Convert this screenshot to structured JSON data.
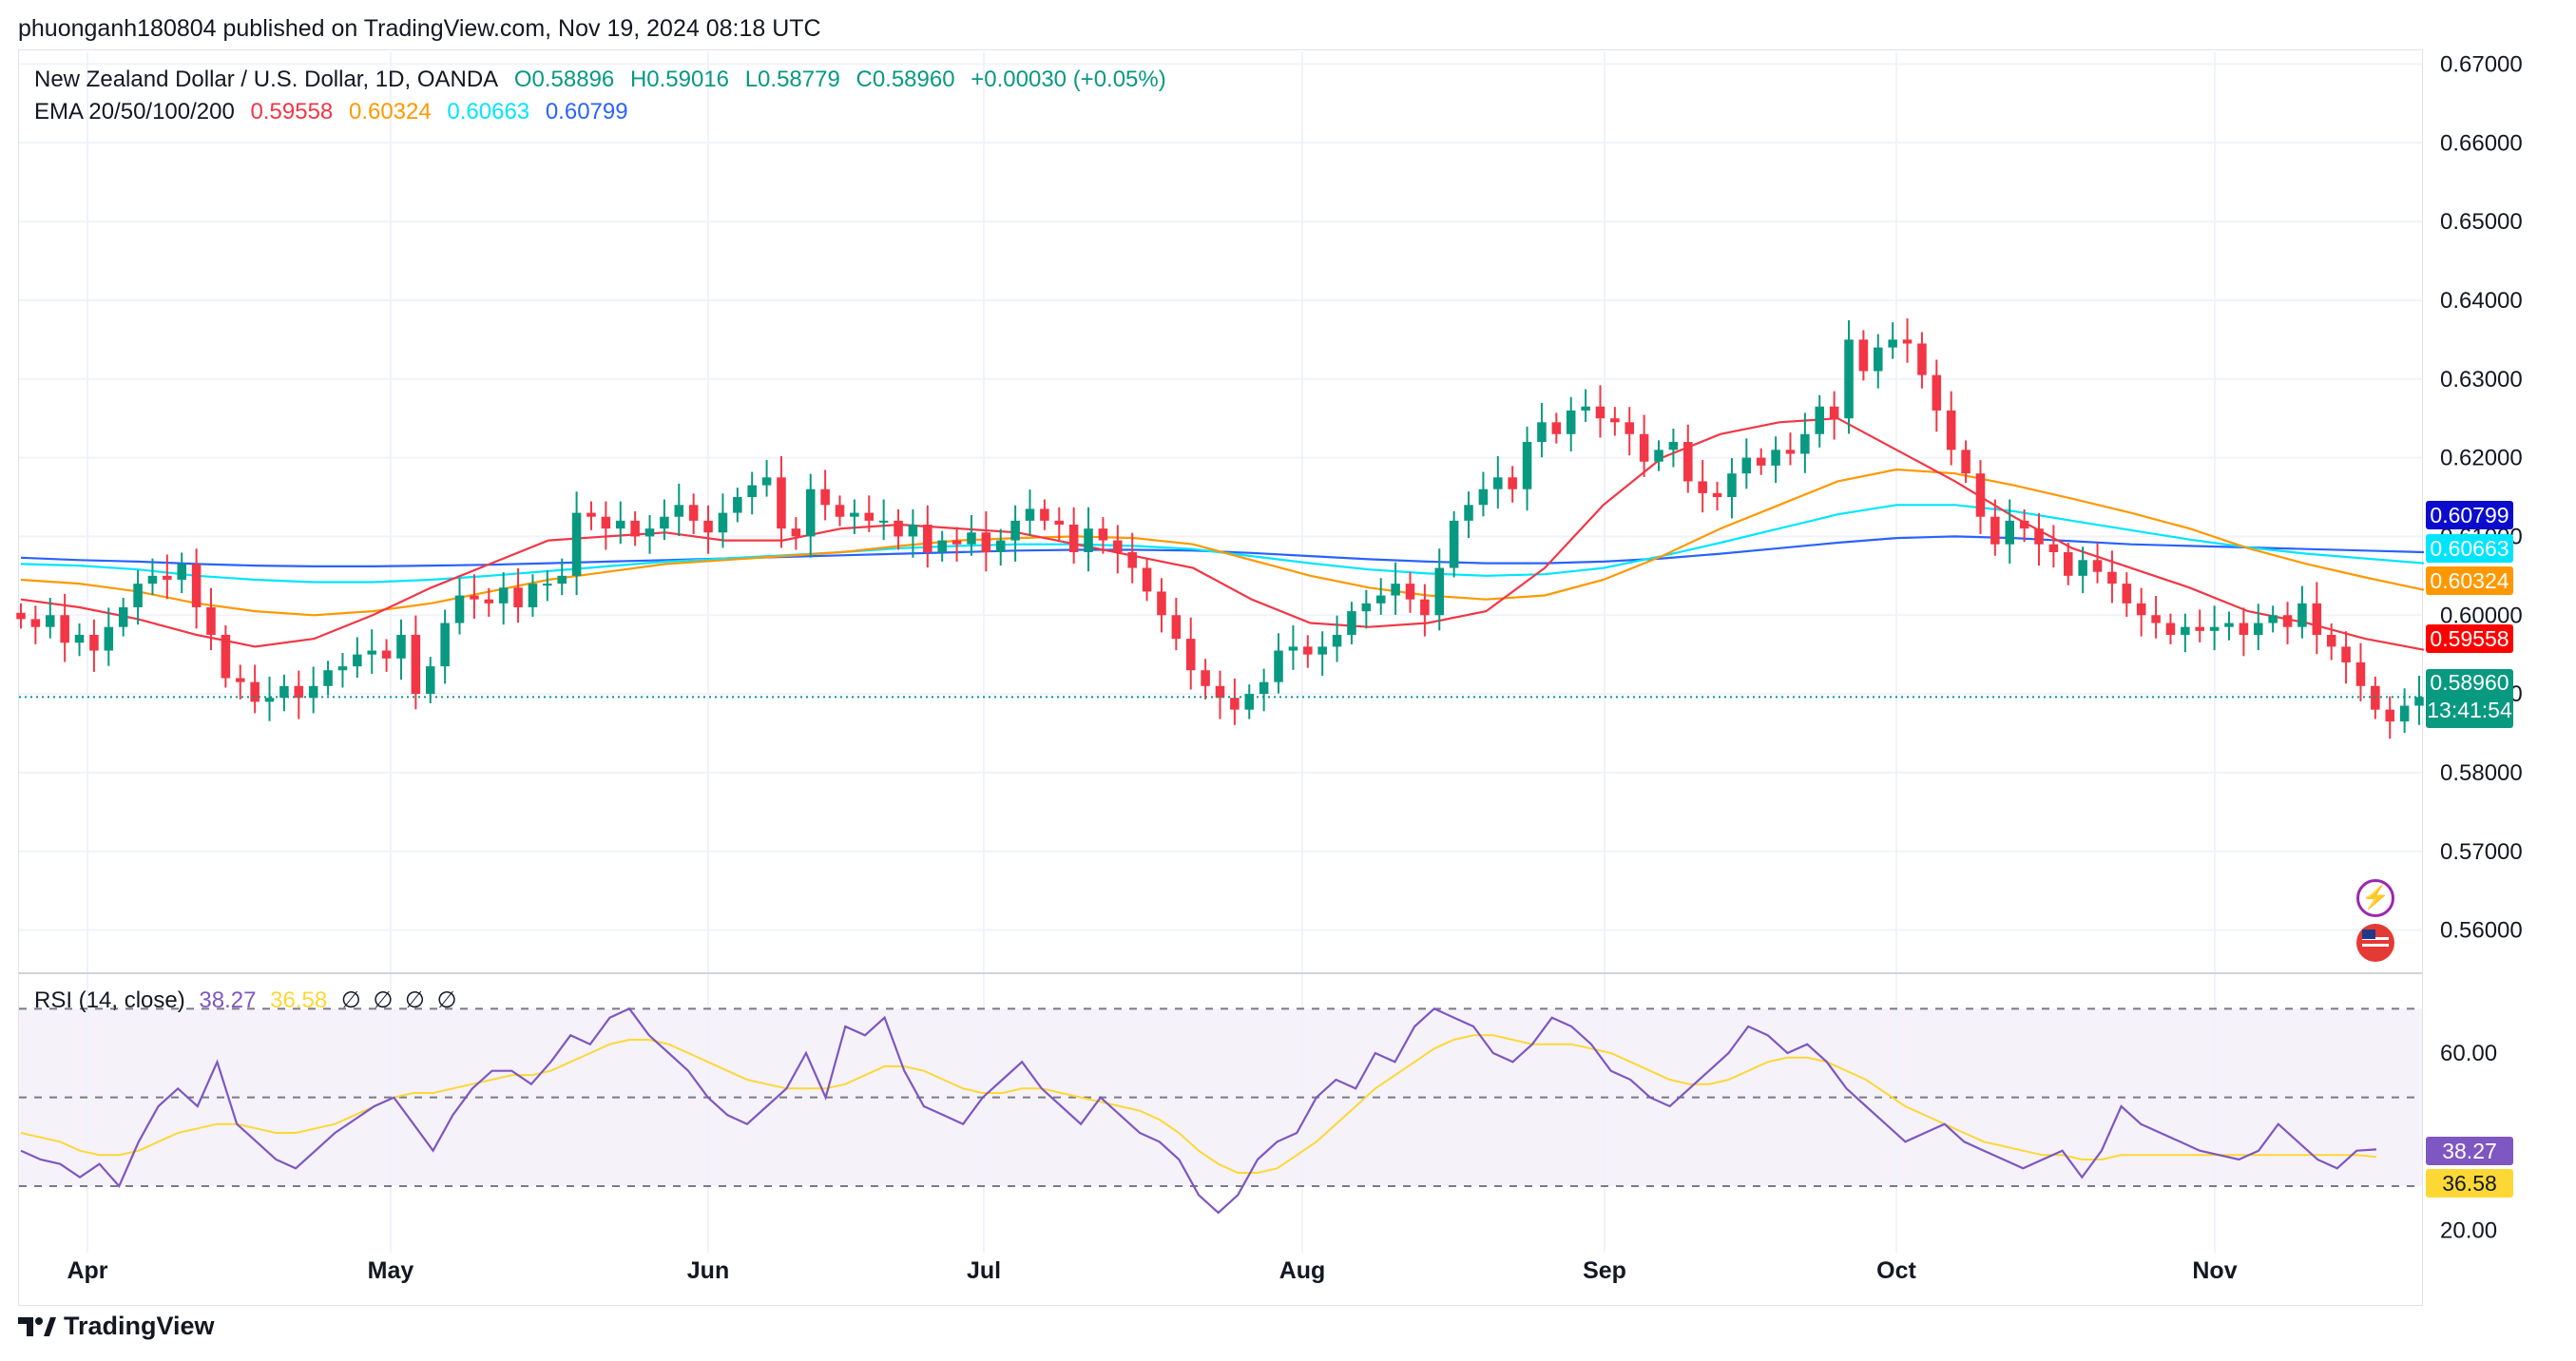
{
  "header": {
    "published_by": "phuonganh180804 published on TradingView.com, Nov 19, 2024 08:18 UTC"
  },
  "legend": {
    "symbol": "New Zealand Dollar / U.S. Dollar, 1D, OANDA",
    "open": "O0.58896",
    "high": "H0.59016",
    "low": "L0.58779",
    "close": "C0.58960",
    "change": "+0.00030 (+0.05%)",
    "ema_label": "EMA 20/50/100/200",
    "ema20": "0.59558",
    "ema50": "0.60324",
    "ema100": "0.60663",
    "ema200": "0.60799"
  },
  "rsi_legend": {
    "label": "RSI (14, close)",
    "rsi": "38.27",
    "ma": "36.58",
    "extras": [
      "∅",
      "∅",
      "∅",
      "∅"
    ]
  },
  "price_axis": {
    "ticks": [
      "0.67000",
      "0.66000",
      "0.65000",
      "0.64000",
      "0.63000",
      "0.62000",
      "0.61000",
      "0.60000",
      "0.59000",
      "0.58000",
      "0.57000",
      "0.56000"
    ],
    "tags": {
      "ema200": "0.60799",
      "ema100": "0.60663",
      "ema50": "0.60324",
      "ema20": "0.59558",
      "last_price": "0.58960",
      "countdown": "13:41:54"
    }
  },
  "rsi_axis": {
    "ticks": [
      "60.00",
      "20.00"
    ],
    "tags": {
      "rsi": "38.27",
      "ma": "36.58"
    }
  },
  "time_axis": {
    "labels": [
      "Apr",
      "May",
      "Jun",
      "Jul",
      "Aug",
      "Sep",
      "Oct",
      "Nov"
    ]
  },
  "colors": {
    "up": "#089981",
    "down": "#f23645",
    "ema20": "#f23645",
    "ema50": "#ff9800",
    "ema100": "#00e5ff",
    "ema200": "#2962ff",
    "rsi": "#7e57c2",
    "rsi_ma": "#fdd835"
  },
  "icons": [
    "lightning-icon",
    "us-flag-icon"
  ],
  "brand": {
    "name": "TradingView"
  },
  "chart_data": {
    "type": "candlestick",
    "title": "New Zealand Dollar / U.S. Dollar, 1D, OANDA",
    "ylim": [
      0.555,
      0.6715
    ],
    "x_labels": [
      "Apr",
      "May",
      "Jun",
      "Jul",
      "Aug",
      "Sep",
      "Oct",
      "Nov"
    ],
    "closes": [
      0.5995,
      0.5985,
      0.6,
      0.5965,
      0.5975,
      0.5955,
      0.5985,
      0.601,
      0.604,
      0.605,
      0.6045,
      0.6065,
      0.601,
      0.5975,
      0.592,
      0.5915,
      0.589,
      0.5895,
      0.591,
      0.5895,
      0.591,
      0.593,
      0.5935,
      0.595,
      0.5955,
      0.5945,
      0.5975,
      0.59,
      0.5935,
      0.599,
      0.6025,
      0.602,
      0.6015,
      0.6035,
      0.601,
      0.604,
      0.604,
      0.605,
      0.613,
      0.6125,
      0.611,
      0.612,
      0.61,
      0.611,
      0.6125,
      0.614,
      0.612,
      0.6105,
      0.613,
      0.615,
      0.6165,
      0.6175,
      0.611,
      0.61,
      0.616,
      0.614,
      0.6125,
      0.613,
      0.612,
      0.612,
      0.61,
      0.6115,
      0.608,
      0.6095,
      0.609,
      0.6105,
      0.608,
      0.6095,
      0.612,
      0.6135,
      0.612,
      0.6115,
      0.608,
      0.611,
      0.6095,
      0.608,
      0.606,
      0.603,
      0.6,
      0.597,
      0.593,
      0.591,
      0.5895,
      0.588,
      0.59,
      0.5915,
      0.5955,
      0.596,
      0.595,
      0.596,
      0.5975,
      0.6005,
      0.6015,
      0.6025,
      0.604,
      0.602,
      0.6,
      0.606,
      0.612,
      0.614,
      0.616,
      0.6175,
      0.616,
      0.622,
      0.6245,
      0.623,
      0.626,
      0.6265,
      0.625,
      0.6245,
      0.623,
      0.6195,
      0.621,
      0.622,
      0.617,
      0.6155,
      0.615,
      0.618,
      0.62,
      0.619,
      0.621,
      0.6205,
      0.623,
      0.6265,
      0.625,
      0.635,
      0.631,
      0.634,
      0.635,
      0.6345,
      0.6305,
      0.626,
      0.621,
      0.618,
      0.6125,
      0.609,
      0.612,
      0.611,
      0.609,
      0.608,
      0.605,
      0.607,
      0.6055,
      0.604,
      0.6015,
      0.6,
      0.599,
      0.5975,
      0.5985,
      0.598,
      0.5985,
      0.599,
      0.5975,
      0.599,
      0.6,
      0.5985,
      0.6015,
      0.5975,
      0.596,
      0.594,
      0.591,
      0.588,
      0.5865,
      0.5885,
      0.5896
    ],
    "ema20": [
      0.602,
      0.601,
      0.5995,
      0.5975,
      0.596,
      0.597,
      0.6,
      0.6035,
      0.6065,
      0.6095,
      0.61,
      0.6105,
      0.6095,
      0.6095,
      0.611,
      0.6115,
      0.611,
      0.6105,
      0.609,
      0.6075,
      0.606,
      0.602,
      0.599,
      0.5985,
      0.599,
      0.6005,
      0.606,
      0.614,
      0.62,
      0.623,
      0.6245,
      0.625,
      0.621,
      0.617,
      0.6125,
      0.6085,
      0.606,
      0.6035,
      0.6005,
      0.599,
      0.597,
      0.5956
    ],
    "ema50": [
      0.6045,
      0.604,
      0.603,
      0.6015,
      0.6005,
      0.6,
      0.6005,
      0.6015,
      0.603,
      0.6045,
      0.6055,
      0.6065,
      0.607,
      0.6075,
      0.608,
      0.6088,
      0.6095,
      0.6098,
      0.61,
      0.6098,
      0.609,
      0.607,
      0.605,
      0.6035,
      0.6025,
      0.602,
      0.6025,
      0.6045,
      0.6075,
      0.611,
      0.614,
      0.617,
      0.6185,
      0.618,
      0.6165,
      0.6148,
      0.613,
      0.611,
      0.6085,
      0.6065,
      0.6048,
      0.6032
    ],
    "ema100": [
      0.6065,
      0.6063,
      0.6058,
      0.605,
      0.6045,
      0.6042,
      0.6042,
      0.6045,
      0.605,
      0.6056,
      0.6062,
      0.6068,
      0.6072,
      0.6076,
      0.608,
      0.6085,
      0.6088,
      0.609,
      0.609,
      0.6088,
      0.6084,
      0.6075,
      0.6066,
      0.6058,
      0.6053,
      0.605,
      0.6052,
      0.606,
      0.6075,
      0.6092,
      0.611,
      0.6128,
      0.614,
      0.614,
      0.6132,
      0.612,
      0.6108,
      0.6096,
      0.6086,
      0.6078,
      0.6072,
      0.6066
    ],
    "ema200": [
      0.6073,
      0.607,
      0.6068,
      0.6065,
      0.6063,
      0.6062,
      0.6062,
      0.6063,
      0.6064,
      0.6066,
      0.6068,
      0.607,
      0.6072,
      0.6074,
      0.6076,
      0.6078,
      0.608,
      0.6082,
      0.6083,
      0.6083,
      0.6082,
      0.6079,
      0.6075,
      0.6071,
      0.6068,
      0.6066,
      0.6066,
      0.6068,
      0.6072,
      0.6078,
      0.6085,
      0.6092,
      0.6098,
      0.61,
      0.6098,
      0.6094,
      0.609,
      0.6088,
      0.6086,
      0.6084,
      0.6082,
      0.608
    ],
    "rsi": [
      38,
      36,
      35,
      32,
      35,
      30,
      40,
      48,
      52,
      48,
      58,
      44,
      40,
      36,
      34,
      38,
      42,
      45,
      48,
      50,
      44,
      38,
      46,
      52,
      56,
      56,
      53,
      58,
      64,
      62,
      68,
      70,
      64,
      60,
      56,
      50,
      46,
      44,
      48,
      52,
      60,
      50,
      66,
      64,
      68,
      56,
      48,
      46,
      44,
      50,
      54,
      58,
      52,
      48,
      44,
      50,
      46,
      42,
      40,
      36,
      28,
      24,
      28,
      36,
      40,
      42,
      50,
      54,
      52,
      60,
      58,
      66,
      70,
      68,
      66,
      60,
      58,
      62,
      68,
      66,
      62,
      56,
      54,
      50,
      48,
      52,
      56,
      60,
      66,
      64,
      60,
      62,
      58,
      52,
      48,
      44,
      40,
      42,
      44,
      40,
      38,
      36,
      34,
      36,
      38,
      32,
      38,
      48,
      44,
      42,
      40,
      38,
      37,
      36,
      38,
      44,
      40,
      36,
      34,
      38,
      38.27
    ],
    "rsi_ma": [
      42,
      41,
      40,
      38,
      37,
      37,
      38,
      40,
      42,
      43,
      44,
      44,
      43,
      42,
      42,
      43,
      44,
      46,
      48,
      50,
      51,
      51,
      52,
      53,
      54,
      55,
      55,
      56,
      58,
      60,
      62,
      63,
      63,
      62,
      60,
      58,
      56,
      54,
      53,
      52,
      52,
      52,
      53,
      55,
      57,
      57,
      56,
      54,
      52,
      51,
      51,
      52,
      52,
      51,
      50,
      49,
      48,
      47,
      45,
      42,
      38,
      35,
      33,
      33,
      34,
      37,
      40,
      44,
      48,
      52,
      55,
      58,
      61,
      63,
      64,
      64,
      63,
      62,
      62,
      62,
      61,
      60,
      58,
      56,
      54,
      53,
      53,
      54,
      56,
      58,
      59,
      59,
      58,
      56,
      54,
      51,
      48,
      46,
      44,
      42,
      40,
      39,
      38,
      37,
      37,
      36,
      36,
      37,
      37,
      37,
      37,
      37,
      37,
      37,
      37,
      37,
      37,
      37,
      37,
      37,
      36.58
    ],
    "rsi_levels": [
      70,
      50,
      30
    ]
  }
}
